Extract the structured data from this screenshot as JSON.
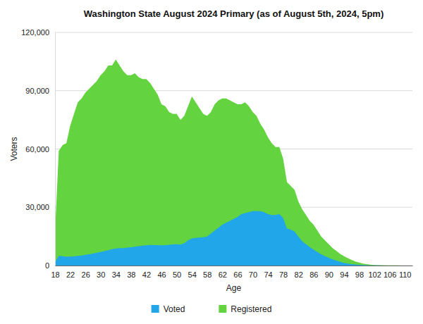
{
  "chart_data": {
    "type": "area",
    "title": "Washington State August 2024 Primary (as of August 5th, 2024, 5pm)",
    "xlabel": "Age",
    "ylabel": "Voters",
    "x": [
      18,
      19,
      20,
      21,
      22,
      23,
      24,
      25,
      26,
      27,
      28,
      29,
      30,
      31,
      32,
      33,
      34,
      35,
      36,
      37,
      38,
      39,
      40,
      41,
      42,
      43,
      44,
      45,
      46,
      47,
      48,
      49,
      50,
      51,
      52,
      53,
      54,
      55,
      56,
      57,
      58,
      59,
      60,
      61,
      62,
      63,
      64,
      65,
      66,
      67,
      68,
      69,
      70,
      71,
      72,
      73,
      74,
      75,
      76,
      77,
      78,
      79,
      80,
      81,
      82,
      83,
      84,
      85,
      86,
      87,
      88,
      89,
      90,
      91,
      92,
      93,
      94,
      95,
      96,
      97,
      98,
      99,
      100,
      101,
      102,
      103,
      104,
      105,
      106,
      107,
      108,
      109,
      110,
      111,
      112
    ],
    "series": [
      {
        "name": "Voted",
        "color": "#22a6ea",
        "values": [
          1500,
          5000,
          4800,
          4500,
          4600,
          4700,
          5000,
          5200,
          5500,
          5800,
          6200,
          6600,
          7000,
          7400,
          7900,
          8400,
          8800,
          9000,
          9000,
          9200,
          9400,
          9700,
          10000,
          10200,
          10400,
          10600,
          10500,
          10500,
          10400,
          10500,
          10700,
          10900,
          11000,
          10800,
          11500,
          13000,
          14000,
          14200,
          14400,
          14600,
          15000,
          16500,
          18000,
          19500,
          21000,
          22000,
          23000,
          24000,
          25000,
          26500,
          27000,
          27500,
          28000,
          28000,
          28000,
          27500,
          26500,
          26000,
          26000,
          26500,
          24500,
          19000,
          18500,
          17500,
          15000,
          12500,
          11000,
          9500,
          8200,
          7000,
          5800,
          4800,
          4000,
          3200,
          2500,
          1900,
          1400,
          1000,
          750,
          550,
          400,
          280,
          190,
          130,
          90,
          60,
          40,
          30,
          20,
          15,
          10,
          8,
          6,
          4,
          2
        ]
      },
      {
        "name": "Registered",
        "color": "#63d33f",
        "values": [
          17000,
          59000,
          62000,
          63000,
          72000,
          78000,
          84000,
          86000,
          89000,
          91000,
          93000,
          95000,
          98000,
          100000,
          103000,
          103000,
          106000,
          103000,
          100000,
          98000,
          98000,
          99000,
          97000,
          96000,
          96000,
          94000,
          91000,
          88000,
          83000,
          82000,
          79000,
          78000,
          78000,
          75000,
          77000,
          82000,
          87000,
          84000,
          81000,
          78000,
          77000,
          79000,
          83000,
          85000,
          86000,
          86000,
          85000,
          84000,
          83000,
          83000,
          84000,
          82000,
          79000,
          77000,
          73000,
          70000,
          66000,
          63000,
          61000,
          61000,
          55000,
          43000,
          41000,
          39000,
          33000,
          29000,
          26000,
          23000,
          21000,
          18000,
          15000,
          13000,
          11000,
          9000,
          7500,
          6000,
          4800,
          3800,
          2900,
          2100,
          1500,
          1000,
          700,
          450,
          300,
          200,
          150,
          100,
          80,
          60,
          50,
          40,
          30,
          20,
          10
        ]
      }
    ],
    "xlim": [
      18,
      112
    ],
    "xticks": [
      18,
      22,
      26,
      30,
      34,
      38,
      42,
      46,
      50,
      54,
      58,
      62,
      66,
      70,
      74,
      78,
      82,
      86,
      90,
      94,
      98,
      102,
      106,
      110
    ],
    "ylim": [
      0,
      120000
    ],
    "yticks": [
      0,
      {
        "value": 30000,
        "label": "30,000"
      },
      {
        "value": 60000,
        "label": "60,000"
      },
      {
        "value": 90000,
        "label": "90,000"
      },
      {
        "value": 120000,
        "label": "120,000"
      }
    ],
    "grid": true,
    "legend": "bottom"
  }
}
